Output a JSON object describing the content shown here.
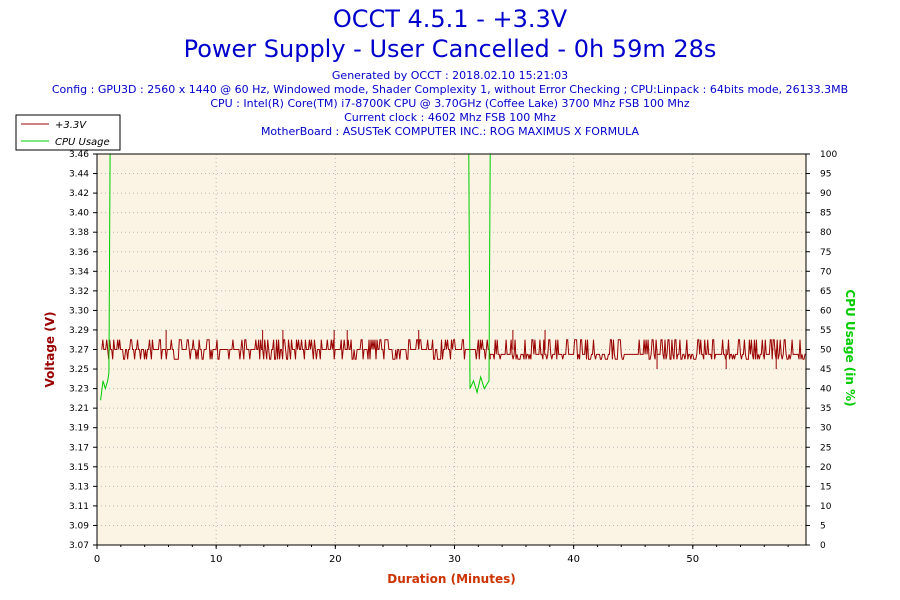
{
  "header": {
    "title": "OCCT 4.5.1 - +3.3V",
    "subtitle": "Power Supply - User Cancelled - 0h 59m 28s",
    "info_lines": [
      "Generated by OCCT : 2018.02.10 15:21:03",
      "Config : GPU3D : 2560 x 1440 @ 60 Hz, Windowed mode, Shader Complexity 1, without Error Checking ; CPU:Linpack : 64bits mode, 26133.3MB",
      "CPU : Intel(R) Core(TM) i7-8700K CPU @ 3.70GHz (Coffee Lake) 3700 Mhz FSB 100 Mhz",
      "Current clock : 4602 Mhz FSB 100 Mhz",
      "MotherBoard : ASUSTeK COMPUTER INC.: ROG MAXIMUS X FORMULA"
    ]
  },
  "colors": {
    "voltage": "#990000",
    "cpu": "#00cc00",
    "title": "#0000cc",
    "axis_title_left": "#990000",
    "axis_title_right": "#00cc00",
    "axis_title_bottom": "#cc3300",
    "plot_bg": "#fbf4e4",
    "grid": "#b8b8b8"
  },
  "chart_data": {
    "type": "line",
    "xlabel": "Duration (Minutes)",
    "ylabel": "Voltage (V)",
    "y2label": "CPU Usage (in %)",
    "xlim": [
      0,
      59.5
    ],
    "x_ticks": [
      0,
      10,
      20,
      30,
      40,
      50
    ],
    "ylim": [
      3.07,
      3.47
    ],
    "y_tick_labels": [
      "3.07",
      "3.09",
      "3.11",
      "3.13",
      "3.15",
      "3.17",
      "3.19",
      "3.21",
      "3.23",
      "3.25",
      "3.27",
      "3.29",
      "3.30",
      "3.32",
      "3.34",
      "3.36",
      "3.38",
      "3.40",
      "3.42",
      "3.44",
      "3.46"
    ],
    "y2lim": [
      0,
      100
    ],
    "y2_ticks": [
      0,
      5,
      10,
      15,
      20,
      25,
      30,
      35,
      40,
      45,
      50,
      55,
      60,
      65,
      70,
      75,
      80,
      85,
      90,
      95,
      100
    ],
    "grid": true,
    "legend_position": "top-left",
    "series": [
      {
        "name": "+3.3V",
        "axis": "left",
        "segments": [
          {
            "x_start": 0.4,
            "x_end": 33.0,
            "typical": 3.27,
            "min": 3.26,
            "max": 3.28
          },
          {
            "x_start": 33.0,
            "x_end": 59.5,
            "typical": 3.265,
            "min": 3.26,
            "max": 3.28
          }
        ],
        "spikes": [
          {
            "x": 5.8,
            "value": 3.29
          },
          {
            "x": 13.9,
            "value": 3.29
          },
          {
            "x": 15.6,
            "value": 3.29
          },
          {
            "x": 19.9,
            "value": 3.29
          },
          {
            "x": 21.0,
            "value": 3.29
          },
          {
            "x": 27.0,
            "value": 3.29
          },
          {
            "x": 34.9,
            "value": 3.29
          },
          {
            "x": 37.6,
            "value": 3.29
          },
          {
            "x": 47.0,
            "value": 3.25
          },
          {
            "x": 52.8,
            "value": 3.25
          },
          {
            "x": 57.0,
            "value": 3.25
          }
        ]
      },
      {
        "name": "CPU Usage",
        "axis": "right",
        "points": [
          [
            0.3,
            37
          ],
          [
            0.5,
            42
          ],
          [
            0.7,
            40
          ],
          [
            0.9,
            42
          ],
          [
            1.0,
            44
          ],
          [
            1.1,
            100
          ],
          [
            31.2,
            100
          ],
          [
            31.3,
            40
          ],
          [
            31.6,
            42
          ],
          [
            31.9,
            39
          ],
          [
            32.2,
            43
          ],
          [
            32.5,
            40
          ],
          [
            32.9,
            42
          ],
          [
            33.0,
            100
          ],
          [
            59.5,
            100
          ]
        ]
      }
    ]
  }
}
